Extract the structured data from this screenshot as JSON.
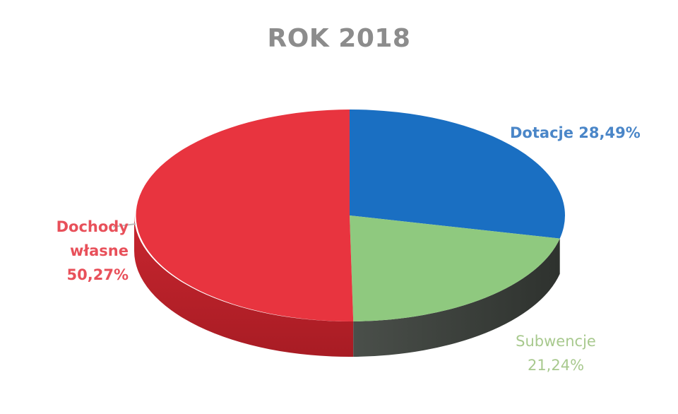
{
  "chart_data": {
    "type": "pie",
    "title": "ROK 2018",
    "slices": [
      {
        "name": "Dotacje",
        "value": 28.49,
        "label": "Dotacje 28,49%",
        "color": "#1a6fc2"
      },
      {
        "name": "Subwencje",
        "value": 21.24,
        "label_lines": [
          "Subwencje",
          "21,24%"
        ],
        "color": "#8fc97f"
      },
      {
        "name": "Dochody własne",
        "value": 50.27,
        "label_lines": [
          "Dochody",
          "własne 50,27%"
        ],
        "color": "#e8343f"
      }
    ],
    "style": "3d-tilted"
  }
}
